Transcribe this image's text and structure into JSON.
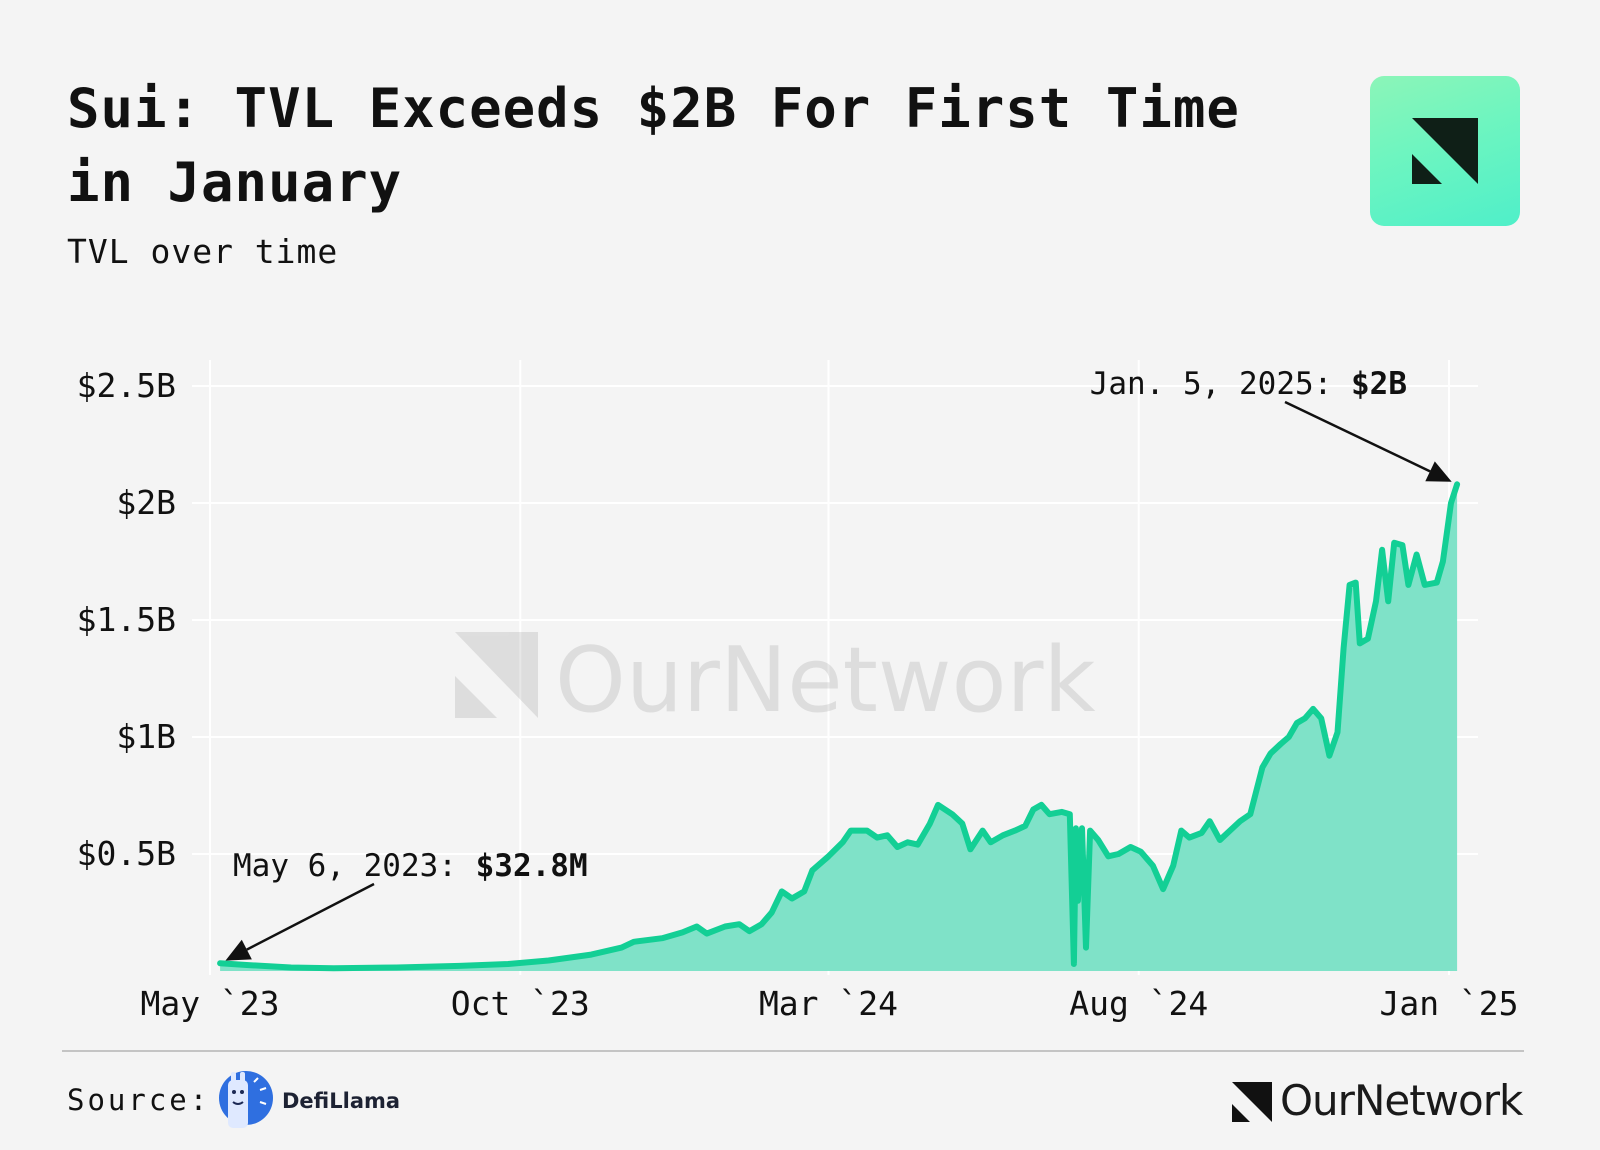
{
  "header": {
    "title": "Sui: TVL Exceeds $2B For First Time in January",
    "subtitle": "TVL over time",
    "brand_tile_icon": "ournetwork-logo-icon"
  },
  "watermark": {
    "text": "OurNetwork",
    "icon": "ournetwork-logo-icon"
  },
  "footer": {
    "source_label": "Source:",
    "source_name": "DefiLlama",
    "source_icon": "defillama-llama-icon",
    "brand_name": "OurNetwork",
    "brand_icon": "ournetwork-logo-icon"
  },
  "colors": {
    "line": "#13cf95",
    "area": "#7fe2c8",
    "brand_gradient_start": "#8cf5b8",
    "brand_gradient_end": "#4fefc9",
    "defillama_blue": "#2f6fe0"
  },
  "chart_data": {
    "type": "area",
    "title": "Sui: TVL Exceeds $2B For First Time in January",
    "subtitle": "TVL over time",
    "xlabel": "",
    "ylabel": "",
    "x_ticks": [
      "May `23",
      "Oct `23",
      "Mar `24",
      "Aug `24",
      "Jan `25"
    ],
    "x_tick_dates": [
      "2023-05-01",
      "2023-10-01",
      "2024-03-01",
      "2024-08-01",
      "2025-01-01"
    ],
    "y_ticks": [
      "$0.5B",
      "$1B",
      "$1.5B",
      "$2B",
      "$2.5B"
    ],
    "y_tick_values": [
      0.5,
      1.0,
      1.5,
      2.0,
      2.5
    ],
    "ylim": [
      0,
      2.6
    ],
    "xlim": [
      "2023-05-01",
      "2025-01-05"
    ],
    "grid": true,
    "legend": "none",
    "series": [
      {
        "unit": "USD billions",
        "points": [
          [
            "2023-05-06",
            0.033
          ],
          [
            "2023-05-20",
            0.025
          ],
          [
            "2023-06-10",
            0.015
          ],
          [
            "2023-07-01",
            0.012
          ],
          [
            "2023-08-01",
            0.015
          ],
          [
            "2023-09-01",
            0.022
          ],
          [
            "2023-09-25",
            0.03
          ],
          [
            "2023-10-15",
            0.045
          ],
          [
            "2023-11-05",
            0.07
          ],
          [
            "2023-11-20",
            0.1
          ],
          [
            "2023-11-26",
            0.125
          ],
          [
            "2023-12-10",
            0.14
          ],
          [
            "2023-12-20",
            0.165
          ],
          [
            "2023-12-27",
            0.19
          ],
          [
            "2024-01-01",
            0.16
          ],
          [
            "2024-01-10",
            0.19
          ],
          [
            "2024-01-17",
            0.2
          ],
          [
            "2024-01-22",
            0.17
          ],
          [
            "2024-01-28",
            0.2
          ],
          [
            "2024-02-02",
            0.25
          ],
          [
            "2024-02-07",
            0.34
          ],
          [
            "2024-02-12",
            0.31
          ],
          [
            "2024-02-18",
            0.34
          ],
          [
            "2024-02-22",
            0.43
          ],
          [
            "2024-03-01",
            0.49
          ],
          [
            "2024-03-08",
            0.55
          ],
          [
            "2024-03-12",
            0.6
          ],
          [
            "2024-03-20",
            0.6
          ],
          [
            "2024-03-25",
            0.57
          ],
          [
            "2024-03-30",
            0.58
          ],
          [
            "2024-04-04",
            0.53
          ],
          [
            "2024-04-09",
            0.55
          ],
          [
            "2024-04-14",
            0.54
          ],
          [
            "2024-04-20",
            0.63
          ],
          [
            "2024-04-24",
            0.71
          ],
          [
            "2024-05-01",
            0.67
          ],
          [
            "2024-05-06",
            0.63
          ],
          [
            "2024-05-10",
            0.52
          ],
          [
            "2024-05-16",
            0.6
          ],
          [
            "2024-05-20",
            0.55
          ],
          [
            "2024-05-26",
            0.58
          ],
          [
            "2024-06-01",
            0.6
          ],
          [
            "2024-06-06",
            0.62
          ],
          [
            "2024-06-10",
            0.69
          ],
          [
            "2024-06-14",
            0.71
          ],
          [
            "2024-06-18",
            0.67
          ],
          [
            "2024-06-24",
            0.68
          ],
          [
            "2024-06-28",
            0.67
          ],
          [
            "2024-06-30",
            0.03
          ],
          [
            "2024-07-01",
            0.61
          ],
          [
            "2024-07-02",
            0.3
          ],
          [
            "2024-07-04",
            0.61
          ],
          [
            "2024-07-06",
            0.1
          ],
          [
            "2024-07-08",
            0.6
          ],
          [
            "2024-07-12",
            0.56
          ],
          [
            "2024-07-17",
            0.49
          ],
          [
            "2024-07-22",
            0.5
          ],
          [
            "2024-07-28",
            0.53
          ],
          [
            "2024-08-02",
            0.51
          ],
          [
            "2024-08-08",
            0.45
          ],
          [
            "2024-08-13",
            0.35
          ],
          [
            "2024-08-18",
            0.45
          ],
          [
            "2024-08-22",
            0.6
          ],
          [
            "2024-08-26",
            0.57
          ],
          [
            "2024-09-01",
            0.59
          ],
          [
            "2024-09-05",
            0.64
          ],
          [
            "2024-09-10",
            0.56
          ],
          [
            "2024-09-15",
            0.6
          ],
          [
            "2024-09-20",
            0.64
          ],
          [
            "2024-09-25",
            0.67
          ],
          [
            "2024-10-01",
            0.87
          ],
          [
            "2024-10-05",
            0.93
          ],
          [
            "2024-10-10",
            0.97
          ],
          [
            "2024-10-14",
            1.0
          ],
          [
            "2024-10-18",
            1.06
          ],
          [
            "2024-10-22",
            1.08
          ],
          [
            "2024-10-26",
            1.12
          ],
          [
            "2024-10-30",
            1.08
          ],
          [
            "2024-11-03",
            0.92
          ],
          [
            "2024-11-07",
            1.02
          ],
          [
            "2024-11-10",
            1.38
          ],
          [
            "2024-11-13",
            1.65
          ],
          [
            "2024-11-16",
            1.66
          ],
          [
            "2024-11-18",
            1.4
          ],
          [
            "2024-11-22",
            1.42
          ],
          [
            "2024-11-26",
            1.58
          ],
          [
            "2024-11-29",
            1.8
          ],
          [
            "2024-12-02",
            1.58
          ],
          [
            "2024-12-05",
            1.83
          ],
          [
            "2024-12-09",
            1.82
          ],
          [
            "2024-12-12",
            1.65
          ],
          [
            "2024-12-16",
            1.78
          ],
          [
            "2024-12-20",
            1.65
          ],
          [
            "2024-12-26",
            1.66
          ],
          [
            "2024-12-29",
            1.75
          ],
          [
            "2025-01-02",
            2.0
          ],
          [
            "2025-01-05",
            2.08
          ]
        ]
      }
    ],
    "annotations": [
      {
        "label": "May 6, 2023: ",
        "value_label": "$32.8M",
        "date": "2023-05-06",
        "value": 0.0328
      },
      {
        "label": "Jan. 5, 2025: ",
        "value_label": "$2B",
        "date": "2025-01-05",
        "value": 2.08
      }
    ]
  }
}
